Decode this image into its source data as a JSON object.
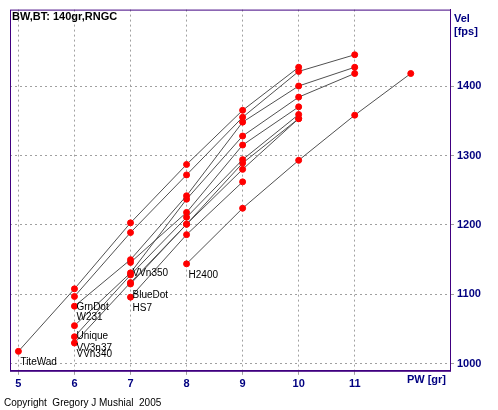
{
  "chart_data": {
    "type": "line",
    "title": "BW,BT: 140gr,RNGC",
    "x_label": "PW [gr]",
    "y_label": "Vel [fps]",
    "annotations": [
      "Copyright  Gregory J Mushial  2005"
    ],
    "xlim": [
      4.85,
      12.7
    ],
    "xticks": [
      5,
      6,
      7,
      8,
      9,
      10,
      11
    ],
    "ylim": [
      990,
      1510
    ],
    "yticks": [
      1000,
      1100,
      1200,
      1300,
      1400
    ],
    "grid": true,
    "marker": "circle",
    "line_style": "solid",
    "series": [
      {
        "name": "TiteWad",
        "color": "#ff0000",
        "x": [
          5,
          6,
          7,
          8,
          9,
          10
        ],
        "values": [
          1018,
          1108,
          1203,
          1287,
          1365,
          1427
        ]
      },
      {
        "name": "GrnDot",
        "color": "#ff0000",
        "x": [
          6,
          7,
          8,
          9,
          10,
          11
        ],
        "values": [
          1097,
          1189,
          1272,
          1355,
          1421,
          1445
        ]
      },
      {
        "name": "W231",
        "color": "#ff0000",
        "x": [
          6,
          7,
          8,
          9,
          10,
          11
        ],
        "values": [
          1083,
          1150,
          1242,
          1348,
          1400,
          1427
        ]
      },
      {
        "name": "Unique",
        "color": "#ff0000",
        "x": [
          6,
          7,
          8,
          9,
          10,
          11
        ],
        "values": [
          1055,
          1131,
          1237,
          1328,
          1384,
          1418
        ]
      },
      {
        "name": "VV3n37",
        "color": "#ff0000",
        "x": [
          6,
          7,
          8,
          9,
          10
        ],
        "values": [
          1039,
          1128,
          1211,
          1294,
          1359
        ]
      },
      {
        "name": "VVn340",
        "color": "#ff0000",
        "x": [
          6,
          7,
          8,
          9,
          10
        ],
        "values": [
          1030,
          1117,
          1201,
          1289,
          1353
        ]
      },
      {
        "name": "VVn350",
        "color": "#ff0000",
        "x": [
          7,
          8,
          9,
          10
        ],
        "values": [
          1146,
          1218,
          1315,
          1370
        ]
      },
      {
        "name": "BlueDot",
        "color": "#ff0000",
        "x": [
          7,
          8,
          9,
          10
        ],
        "values": [
          1115,
          1201,
          1280,
          1353
        ]
      },
      {
        "name": "HS7",
        "color": "#ff0000",
        "x": [
          7,
          8,
          9
        ],
        "values": [
          1096,
          1186,
          1262
        ]
      },
      {
        "name": "H2400",
        "color": "#ff0000",
        "x": [
          8,
          9,
          10,
          11,
          12
        ],
        "values": [
          1144,
          1224,
          1293,
          1358,
          1418
        ]
      }
    ]
  }
}
